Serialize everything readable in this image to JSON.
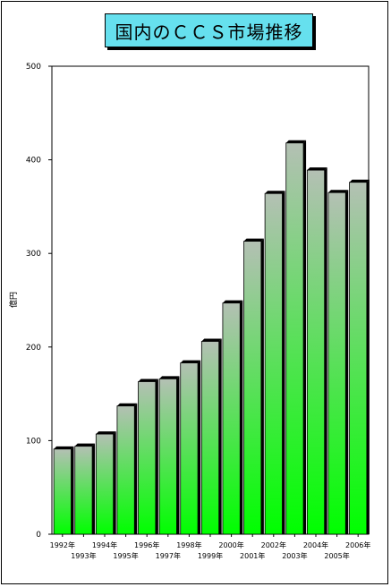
{
  "chart_data": {
    "type": "bar",
    "title": "国内のＣＣＳ市場推移",
    "xlabel": "",
    "ylabel": "億円",
    "ylim": [
      0,
      500
    ],
    "yticks": [
      0,
      100,
      200,
      300,
      400,
      500
    ],
    "grid": false,
    "categories": [
      "1992年",
      "1993年",
      "1994年",
      "1995年",
      "1996年",
      "1997年",
      "1998年",
      "1999年",
      "2000年",
      "2001年",
      "2002年",
      "2003年",
      "2004年",
      "2005年",
      "2006年"
    ],
    "values": [
      91,
      94,
      107,
      137,
      163,
      166,
      183,
      206,
      247,
      313,
      364,
      418,
      389,
      365,
      376
    ],
    "colors": {
      "bar_top": "#b4c0b4",
      "bar_bottom": "#00ff00",
      "title_bg": "#66e0ee"
    }
  }
}
